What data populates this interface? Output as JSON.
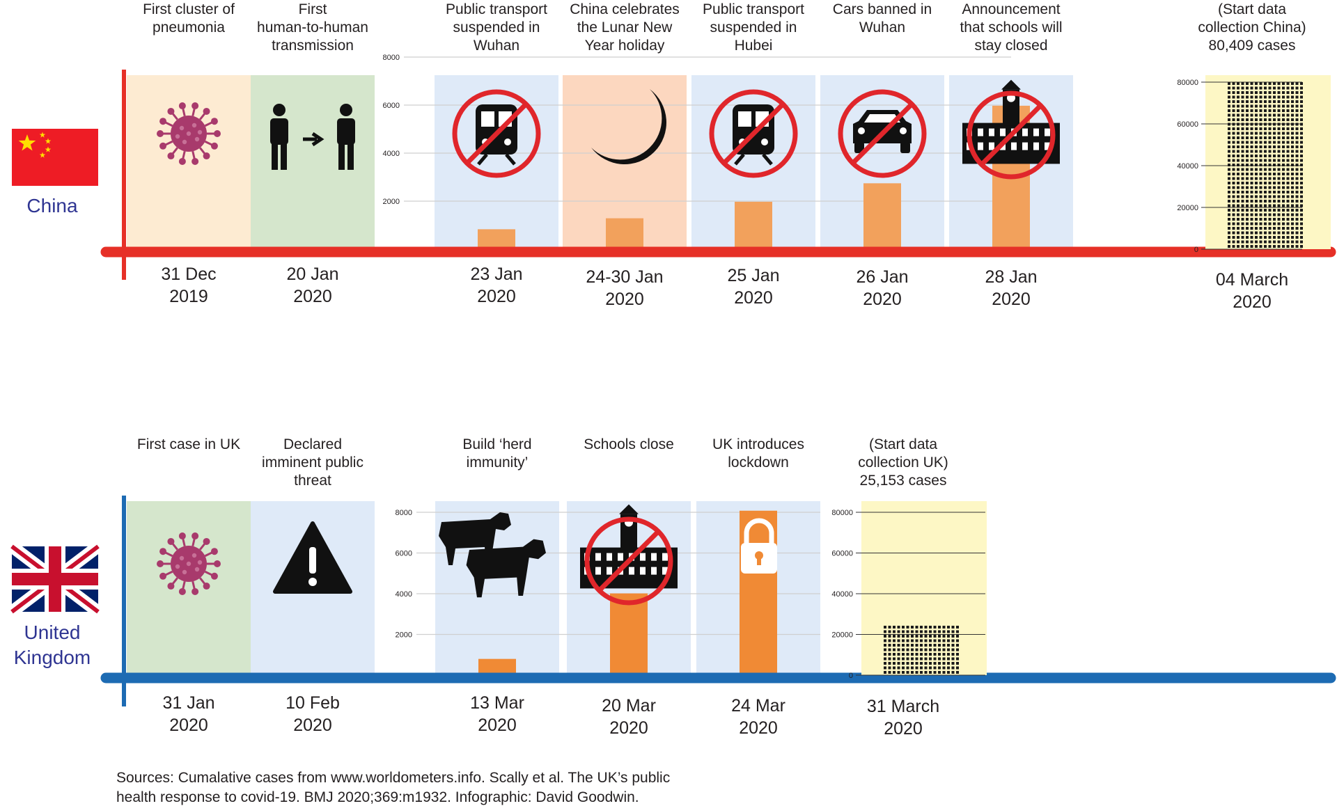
{
  "colors": {
    "china_red": "#e63027",
    "uk_blue": "#1d6bb3",
    "country_label": "#2f3592",
    "panel_peach": "#fdebd2",
    "panel_green": "#d5e6cc",
    "panel_blue": "#dfeaf8",
    "panel_salmon": "#fcd7bf",
    "panel_yellow": "#fdf7c5",
    "bar_china": "#f2a15c",
    "bar_uk": "#f08a35",
    "virus": "#a83a6c",
    "prohibit": "#e0262b"
  },
  "chart_data": [
    {
      "type": "bar",
      "country": "China",
      "ylim": [
        0,
        8000
      ],
      "yticks": [
        "0",
        "2000",
        "4000",
        "6000",
        "8000"
      ],
      "categories": [
        "First cluster of pneumonia",
        "First human-to-human transmission",
        "Public transport suspended in Wuhan",
        "China celebrates the Lunar New Year holiday",
        "Public transport suspended in Hubei",
        "Cars banned in Wuhan",
        "Announcement that schools will stay closed"
      ],
      "values": [
        null,
        null,
        830,
        1287,
        1975,
        2744,
        5974
      ],
      "final_panel": {
        "value": 80409,
        "ylim": [
          0,
          80000
        ],
        "yticks": [
          "0",
          "20000",
          "40000",
          "60000",
          "80000"
        ]
      }
    },
    {
      "type": "bar",
      "country": "United Kingdom",
      "ylim": [
        0,
        8000
      ],
      "yticks": [
        "0",
        "2000",
        "4000",
        "6000",
        "8000"
      ],
      "categories": [
        "First case in UK",
        "Declared imminent public threat",
        "Build ‘herd immunity’",
        "Schools close",
        "UK introduces lockdown"
      ],
      "values": [
        null,
        null,
        798,
        4014,
        8077
      ],
      "final_panel": {
        "value": 25153,
        "ylim": [
          0,
          80000
        ],
        "yticks": [
          "0",
          "20000",
          "40000",
          "60000",
          "80000"
        ]
      }
    }
  ],
  "china": {
    "label": "China",
    "events": [
      {
        "title": [
          "First cluster of",
          "pneumonia"
        ],
        "date": [
          "31 Dec",
          "2019"
        ],
        "icon": "virus-icon"
      },
      {
        "title": [
          "First",
          "human-to-human",
          "transmission"
        ],
        "date": [
          "20 Jan",
          "2020"
        ],
        "icon": "person-to-person-icon"
      },
      {
        "title": [
          "Public transport",
          "suspended in",
          "Wuhan"
        ],
        "date": [
          "23 Jan",
          "2020"
        ],
        "icon": "no-train-icon"
      },
      {
        "title": [
          "China celebrates",
          "the Lunar New",
          "Year holiday"
        ],
        "date": [
          "24-30 Jan",
          "2020"
        ],
        "icon": "crescent-moon-icon"
      },
      {
        "title": [
          "Public transport",
          "suspended in",
          "Hubei"
        ],
        "date": [
          "25 Jan",
          "2020"
        ],
        "icon": "no-train-icon"
      },
      {
        "title": [
          "Cars banned in",
          "Wuhan"
        ],
        "date": [
          "26 Jan",
          "2020"
        ],
        "icon": "no-car-icon"
      },
      {
        "title": [
          "Announcement",
          "that schools will",
          "stay closed"
        ],
        "date": [
          "28 Jan",
          "2020"
        ],
        "icon": "no-school-icon"
      }
    ],
    "final": {
      "title": [
        "(Start data",
        "collection China)",
        "80,409 cases"
      ],
      "date": [
        "04 March",
        "2020"
      ]
    }
  },
  "uk": {
    "label": [
      "United",
      "Kingdom"
    ],
    "events": [
      {
        "title": [
          "First case in UK"
        ],
        "date": [
          "31 Jan",
          "2020"
        ],
        "icon": "virus-icon"
      },
      {
        "title": [
          "Declared",
          "imminent public",
          "threat"
        ],
        "date": [
          "10 Feb",
          "2020"
        ],
        "icon": "warning-icon"
      },
      {
        "title": [
          "Build ‘herd",
          "immunity’"
        ],
        "date": [
          "13 Mar",
          "2020"
        ],
        "icon": "cows-icon"
      },
      {
        "title": [
          "Schools close"
        ],
        "date": [
          "20 Mar",
          "2020"
        ],
        "icon": "no-school-icon"
      },
      {
        "title": [
          "UK introduces",
          "lockdown"
        ],
        "date": [
          "24 Mar",
          "2020"
        ],
        "icon": "padlock-icon"
      }
    ],
    "final": {
      "title": [
        "(Start data",
        "collection UK)",
        "25,153 cases"
      ],
      "date": [
        "31 March",
        "2020"
      ]
    }
  },
  "sources": [
    "Sources: Cumalative cases from www.worldometers.info. Scally et al. The UK’s public",
    "health response to covid-19. BMJ 2020;369:m1932. Infographic: David Goodwin."
  ]
}
